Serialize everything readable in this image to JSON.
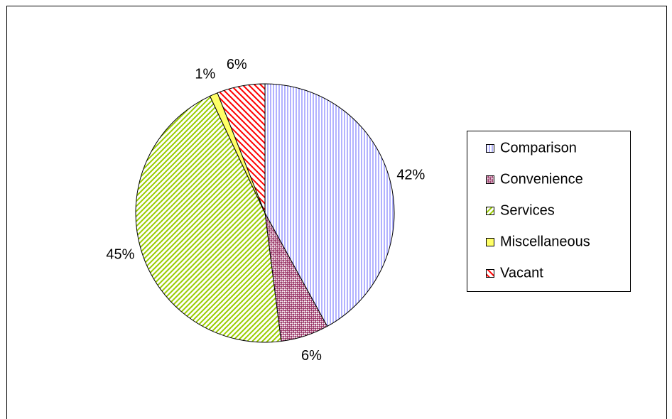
{
  "chart_data": {
    "type": "pie",
    "categories": [
      "Comparison",
      "Convenience",
      "Services",
      "Miscellaneous",
      "Vacant"
    ],
    "values": [
      42,
      6,
      45,
      1,
      6
    ],
    "value_labels": [
      "42%",
      "6%",
      "45%",
      "1%",
      "6%"
    ],
    "colors": [
      "#9999ff",
      "#993366",
      "#99cc00",
      "#ffff66",
      "#ff0000"
    ],
    "legend": "right"
  }
}
